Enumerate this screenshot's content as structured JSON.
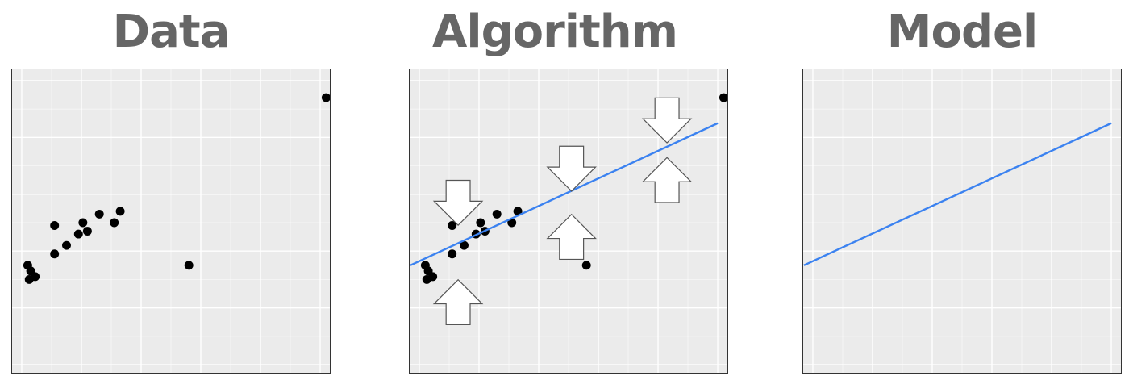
{
  "panels": {
    "data": {
      "title": "Data"
    },
    "algorithm": {
      "title": "Algorithm"
    },
    "model": {
      "title": "Model"
    }
  },
  "colors": {
    "background": "#ebebeb",
    "gridline": "#ffffff",
    "title": "#666666",
    "point": "#000000",
    "fit_line": "#3b82f0",
    "arrow_fill": "#ffffff",
    "arrow_stroke": "#555555"
  },
  "icons": {
    "residual_up": "arrow-up-icon",
    "residual_down": "arrow-down-icon"
  },
  "chart_data": {
    "type": "scatter",
    "x_range": [
      0,
      10
    ],
    "y_range": [
      0,
      10
    ],
    "grid": true,
    "points": [
      {
        "x": 0.2,
        "y": 3.5
      },
      {
        "x": 0.3,
        "y": 3.3
      },
      {
        "x": 0.25,
        "y": 3.0
      },
      {
        "x": 0.45,
        "y": 3.1
      },
      {
        "x": 1.1,
        "y": 3.9
      },
      {
        "x": 1.5,
        "y": 4.2
      },
      {
        "x": 1.1,
        "y": 4.9
      },
      {
        "x": 1.9,
        "y": 4.6
      },
      {
        "x": 2.05,
        "y": 5.0
      },
      {
        "x": 2.2,
        "y": 4.7
      },
      {
        "x": 2.6,
        "y": 5.3
      },
      {
        "x": 3.1,
        "y": 5.0
      },
      {
        "x": 3.3,
        "y": 5.4
      },
      {
        "x": 5.6,
        "y": 3.5
      },
      {
        "x": 10.2,
        "y": 9.4
      }
    ],
    "fit_line": {
      "x": [
        -0.3,
        10.0
      ],
      "y": [
        3.5,
        8.5
      ]
    },
    "residual_arrows": [
      {
        "x": 1.3,
        "y": 5.7,
        "direction": "down"
      },
      {
        "x": 1.3,
        "y": 2.2,
        "direction": "up"
      },
      {
        "x": 5.1,
        "y": 6.9,
        "direction": "down"
      },
      {
        "x": 5.1,
        "y": 4.5,
        "direction": "up"
      },
      {
        "x": 8.3,
        "y": 8.6,
        "direction": "down"
      },
      {
        "x": 8.3,
        "y": 6.5,
        "direction": "up"
      }
    ]
  }
}
